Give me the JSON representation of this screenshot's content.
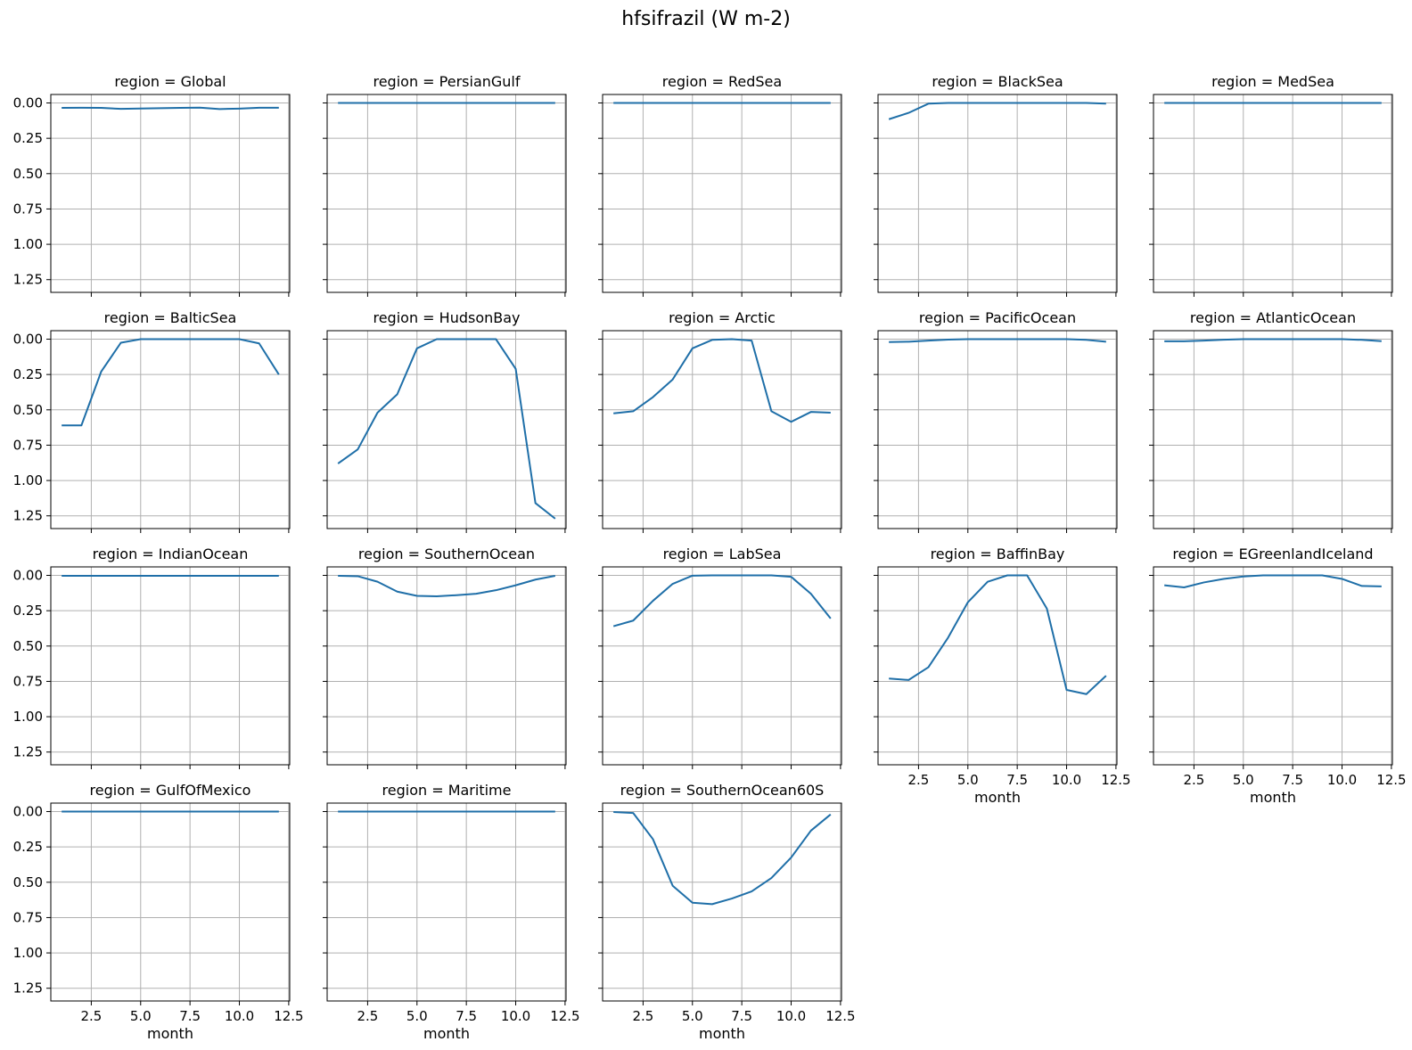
{
  "figure": {
    "title": "hfsifrazil (W m-2)",
    "line_color": "#1f6fa8"
  },
  "chart_data": {
    "type": "line",
    "title": "hfsifrazil (W m-2)",
    "xlabel": "month",
    "ylabel": "",
    "x": [
      1,
      2,
      3,
      4,
      5,
      6,
      7,
      8,
      9,
      10,
      11,
      12
    ],
    "xlim": [
      0.45,
      12.55
    ],
    "ylim": [
      1.34,
      -0.06
    ],
    "y_inverted": true,
    "xticks": [
      2.5,
      5.0,
      7.5,
      10.0,
      12.5
    ],
    "xtick_labels": [
      "2.5",
      "5.0",
      "7.5",
      "10.0",
      "12.5"
    ],
    "yticks": [
      0.0,
      0.25,
      0.5,
      0.75,
      1.0,
      1.25
    ],
    "ytick_labels": [
      "0.00",
      "0.25",
      "0.50",
      "0.75",
      "1.00",
      "1.25"
    ],
    "grid": true,
    "panels": [
      {
        "title": "region = Global",
        "y": [
          0.035,
          0.034,
          0.035,
          0.042,
          0.039,
          0.037,
          0.035,
          0.033,
          0.043,
          0.04,
          0.034,
          0.034
        ]
      },
      {
        "title": "region = PersianGulf",
        "y": [
          0,
          0,
          0,
          0,
          0,
          0,
          0,
          0,
          0,
          0,
          0,
          0
        ]
      },
      {
        "title": "region = RedSea",
        "y": [
          0,
          0,
          0,
          0,
          0,
          0,
          0,
          0,
          0,
          0,
          0,
          0
        ]
      },
      {
        "title": "region = BlackSea",
        "y": [
          0.115,
          0.07,
          0.005,
          0,
          0,
          0,
          0,
          0,
          0,
          0,
          0,
          0.005
        ]
      },
      {
        "title": "region = MedSea",
        "y": [
          0,
          0,
          0,
          0,
          0,
          0,
          0,
          0,
          0,
          0,
          0,
          0
        ]
      },
      {
        "title": "region = BalticSea",
        "y": [
          0.61,
          0.61,
          0.23,
          0.025,
          0,
          0,
          0,
          0,
          0,
          0,
          0.03,
          0.25
        ]
      },
      {
        "title": "region = HudsonBay",
        "y": [
          0.88,
          0.78,
          0.52,
          0.39,
          0.065,
          0,
          0,
          0,
          0,
          0.21,
          1.16,
          1.27
        ]
      },
      {
        "title": "region = Arctic",
        "y": [
          0.525,
          0.51,
          0.41,
          0.285,
          0.065,
          0.005,
          0,
          0.01,
          0.51,
          0.585,
          0.515,
          0.52
        ]
      },
      {
        "title": "region = PacificOcean",
        "y": [
          0.02,
          0.018,
          0.01,
          0.003,
          0,
          0,
          0,
          0,
          0,
          0,
          0.005,
          0.018
        ]
      },
      {
        "title": "region = AtlanticOcean",
        "y": [
          0.015,
          0.015,
          0.01,
          0.004,
          0,
          0,
          0,
          0,
          0,
          0,
          0.005,
          0.014
        ]
      },
      {
        "title": "region = IndianOcean",
        "y": [
          0.003,
          0.003,
          0.003,
          0.003,
          0.003,
          0.003,
          0.003,
          0.003,
          0.003,
          0.003,
          0.003,
          0.003
        ]
      },
      {
        "title": "region = SouthernOcean",
        "y": [
          0.003,
          0.006,
          0.045,
          0.115,
          0.145,
          0.148,
          0.14,
          0.13,
          0.105,
          0.07,
          0.03,
          0.003
        ]
      },
      {
        "title": "region = LabSea",
        "y": [
          0.36,
          0.32,
          0.18,
          0.06,
          0.002,
          0,
          0,
          0,
          0,
          0.01,
          0.13,
          0.305
        ]
      },
      {
        "title": "region = BaffinBay",
        "y": [
          0.73,
          0.74,
          0.65,
          0.44,
          0.19,
          0.045,
          0,
          0,
          0.235,
          0.81,
          0.84,
          0.71
        ]
      },
      {
        "title": "region = EGreenlandIceland",
        "y": [
          0.07,
          0.085,
          0.05,
          0.025,
          0.008,
          0,
          0,
          0,
          0,
          0.025,
          0.075,
          0.078
        ]
      },
      {
        "title": "region = GulfOfMexico",
        "y": [
          0,
          0,
          0,
          0,
          0,
          0,
          0,
          0,
          0,
          0,
          0,
          0
        ]
      },
      {
        "title": "region = Maritime",
        "y": [
          0,
          0,
          0,
          0,
          0,
          0,
          0,
          0,
          0,
          0,
          0,
          0
        ]
      },
      {
        "title": "region = SouthernOcean60S",
        "y": [
          0.003,
          0.01,
          0.195,
          0.525,
          0.645,
          0.655,
          0.615,
          0.565,
          0.47,
          0.325,
          0.135,
          0.02
        ]
      }
    ]
  }
}
